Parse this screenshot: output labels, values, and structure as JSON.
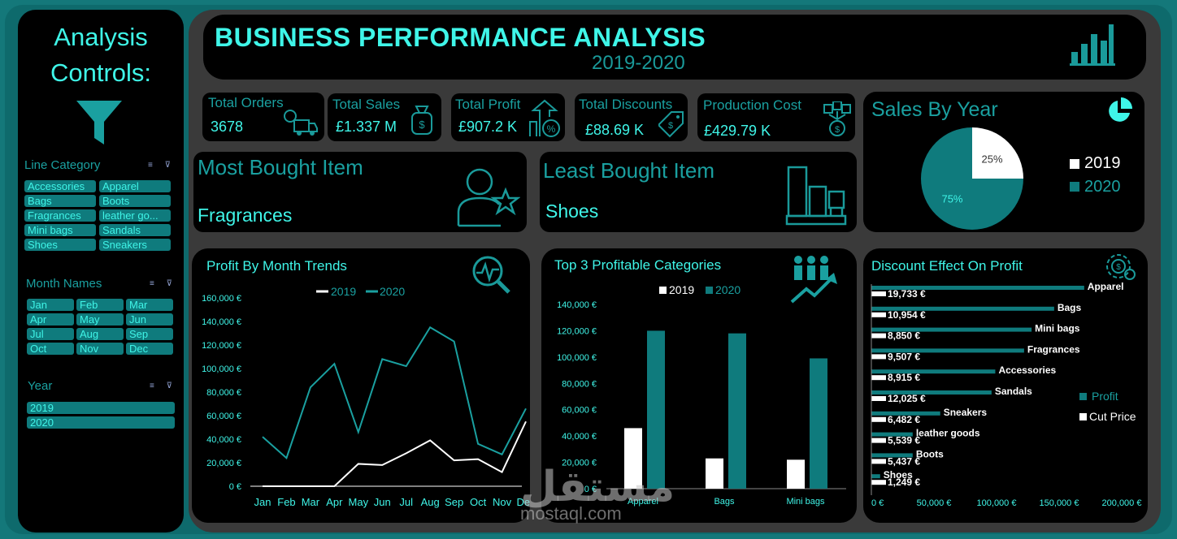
{
  "header": {
    "title": "BUSINESS PERFORMANCE ANALYSIS",
    "subtitle": "2019-2020",
    "icon": "bar-chart-icon"
  },
  "sidebar": {
    "title_line1": "Analysis",
    "title_line2": "Controls:",
    "icon": "funnel-icon",
    "slicers": {
      "line_category": {
        "label": "Line Category",
        "items": [
          "Accessories",
          "Apparel",
          "Bags",
          "Boots",
          "Fragrances",
          "leather go...",
          "Mini bags",
          "Sandals",
          "Shoes",
          "Sneakers"
        ]
      },
      "month_names": {
        "label": "Month Names",
        "items": [
          "Jan",
          "Feb",
          "Mar",
          "Apr",
          "May",
          "Jun",
          "Jul",
          "Aug",
          "Sep",
          "Oct",
          "Nov",
          "Dec"
        ]
      },
      "year": {
        "label": "Year",
        "items": [
          "2019",
          "2020"
        ]
      }
    }
  },
  "kpis": [
    {
      "label": "Total Orders",
      "value": "3678",
      "icon": "delivery-truck-icon"
    },
    {
      "label": "Total Sales",
      "value": "£1.337 M",
      "icon": "money-bag-icon"
    },
    {
      "label": "Total Profit",
      "value": "£907.2 K",
      "icon": "profit-arrow-icon"
    },
    {
      "label": "Total Discounts",
      "value": "£88.69 K",
      "icon": "discount-tag-icon"
    },
    {
      "label": "Production Cost",
      "value": "£429.79 K",
      "icon": "production-cost-icon"
    }
  ],
  "most_bought": {
    "label": "Most Bought Item",
    "value": "Fragrances",
    "icon": "person-star-icon"
  },
  "least_bought": {
    "label": "Least Bought Item",
    "value": "Shoes",
    "icon": "furniture-icon"
  },
  "sales_by_year": {
    "title": "Sales By Year",
    "icon": "pie-chart-icon",
    "chart_data": {
      "type": "pie",
      "slices": [
        {
          "name": "2019",
          "value": 25,
          "label": "25%"
        },
        {
          "name": "2020",
          "value": 75,
          "label": "75%"
        }
      ],
      "legend": "right"
    }
  },
  "colors": {
    "accent": "#3ff5e8",
    "series_2020": "#0f7b7d",
    "series_2019": "#ffffff",
    "panel": "#000000"
  },
  "profit_by_month": {
    "title": "Profit By Month Trends",
    "icon": "magnifier-pulse-icon",
    "chart_data": {
      "type": "line",
      "categories": [
        "Jan",
        "Feb",
        "Mar",
        "Apr",
        "May",
        "Jun",
        "Jul",
        "Aug",
        "Sep",
        "Oct",
        "Nov",
        "Dec"
      ],
      "series": [
        {
          "name": "2019",
          "values": [
            0,
            0,
            0,
            0,
            19000,
            18000,
            28000,
            39000,
            22000,
            23000,
            12000,
            55000
          ]
        },
        {
          "name": "2020",
          "values": [
            42000,
            24000,
            84000,
            104000,
            46000,
            108000,
            102000,
            135000,
            123000,
            36000,
            27000,
            66000
          ]
        }
      ],
      "ylim": [
        0,
        160000
      ],
      "yticks": [
        "160,000 €",
        "140,000 €",
        "120,000 €",
        "100,000 €",
        "80,000 €",
        "60,000 €",
        "40,000 €",
        "20,000 €",
        "0 €"
      ],
      "legend": "top"
    }
  },
  "top3": {
    "title": "Top 3 Profitable Categories",
    "icon": "team-growth-icon",
    "chart_data": {
      "type": "bar",
      "categories": [
        "Apparel",
        "Bags",
        "Mini bags"
      ],
      "series": [
        {
          "name": "2019",
          "values": [
            46000,
            23000,
            22000
          ]
        },
        {
          "name": "2020",
          "values": [
            120000,
            118000,
            99000
          ]
        }
      ],
      "ylim": [
        0,
        140000
      ],
      "yticks": [
        "140,000 €",
        "120,000 €",
        "100,000 €",
        "80,000 €",
        "60,000 €",
        "40,000 €",
        "20,000 €",
        "0 €"
      ],
      "legend": "top"
    }
  },
  "discount_effect": {
    "title": "Discount Effect On Profit",
    "icon": "gear-money-icon",
    "chart_data": {
      "type": "bar",
      "orientation": "horizontal",
      "categories": [
        "Apparel",
        "Bags",
        "Mini bags",
        "Fragrances",
        "Accessories",
        "Sandals",
        "Sneakers",
        "leather goods",
        "Boots",
        "Shoes"
      ],
      "series": [
        {
          "name": "Profit",
          "values": [
            170000,
            146000,
            128000,
            122000,
            99000,
            96000,
            55000,
            33000,
            33000,
            7000
          ]
        },
        {
          "name": "Cut Price",
          "values": [
            19733,
            10954,
            8850,
            9507,
            8915,
            12025,
            6482,
            5539,
            5437,
            1249
          ]
        }
      ],
      "value_labels": [
        "19,733 €",
        "10,954 €",
        "8,850 €",
        "9,507 €",
        "8,915 €",
        "12,025 €",
        "6,482 €",
        "5,539 €",
        "5,437 €",
        "1,249 €"
      ],
      "xlim": [
        0,
        200000
      ],
      "xticks": [
        "0 €",
        "50,000 €",
        "100,000 €",
        "150,000 €",
        "200,000 €"
      ],
      "legend": "right"
    }
  },
  "watermark": {
    "text": "مستقل",
    "sub": "mostaql.com"
  }
}
